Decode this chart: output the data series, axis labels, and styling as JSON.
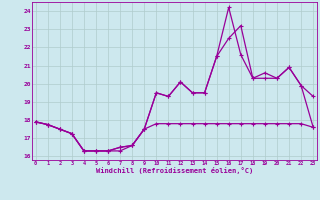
{
  "x_labels": [
    0,
    1,
    2,
    3,
    4,
    5,
    6,
    7,
    8,
    9,
    10,
    11,
    12,
    13,
    14,
    15,
    16,
    17,
    18,
    19,
    20,
    21,
    22,
    23
  ],
  "xlim": [
    -0.3,
    23.3
  ],
  "ylim": [
    15.8,
    24.5
  ],
  "yticks": [
    16,
    17,
    18,
    19,
    20,
    21,
    22,
    23,
    24
  ],
  "background_color": "#cde8ee",
  "grid_color": "#b0cccc",
  "line_color": "#990099",
  "xlabel": "Windchill (Refroidissement éolien,°C)",
  "series": {
    "line1_x": [
      0,
      1,
      2,
      3,
      4,
      5,
      6,
      7,
      8,
      9,
      10,
      11,
      12,
      13,
      14,
      15,
      16,
      17,
      18,
      19,
      20,
      21,
      22,
      23
    ],
    "line1_y": [
      17.9,
      17.75,
      17.5,
      17.25,
      16.3,
      16.3,
      16.3,
      16.3,
      16.6,
      17.5,
      17.8,
      17.8,
      17.8,
      17.8,
      17.8,
      17.8,
      17.8,
      17.8,
      17.8,
      17.8,
      17.8,
      17.8,
      17.8,
      17.6
    ],
    "line2_x": [
      0,
      1,
      2,
      3,
      4,
      5,
      6,
      7,
      8,
      9,
      10,
      11,
      12,
      13,
      14,
      15,
      16,
      17,
      18,
      19,
      20,
      21,
      22,
      23
    ],
    "line2_y": [
      17.9,
      17.75,
      17.5,
      17.25,
      16.3,
      16.3,
      16.3,
      16.5,
      16.6,
      17.5,
      19.5,
      19.3,
      20.1,
      19.5,
      19.5,
      21.5,
      22.5,
      23.2,
      20.3,
      20.3,
      20.3,
      20.9,
      19.9,
      19.3
    ],
    "line3_x": [
      0,
      1,
      2,
      3,
      4,
      5,
      6,
      7,
      8,
      9,
      10,
      11,
      12,
      13,
      14,
      15,
      16,
      17,
      18,
      19,
      20,
      21,
      22,
      23
    ],
    "line3_y": [
      17.9,
      17.75,
      17.5,
      17.25,
      16.3,
      16.3,
      16.3,
      16.5,
      16.6,
      17.5,
      19.5,
      19.3,
      20.1,
      19.5,
      19.5,
      21.5,
      24.2,
      21.6,
      20.3,
      20.6,
      20.3,
      20.9,
      19.9,
      17.6
    ]
  }
}
